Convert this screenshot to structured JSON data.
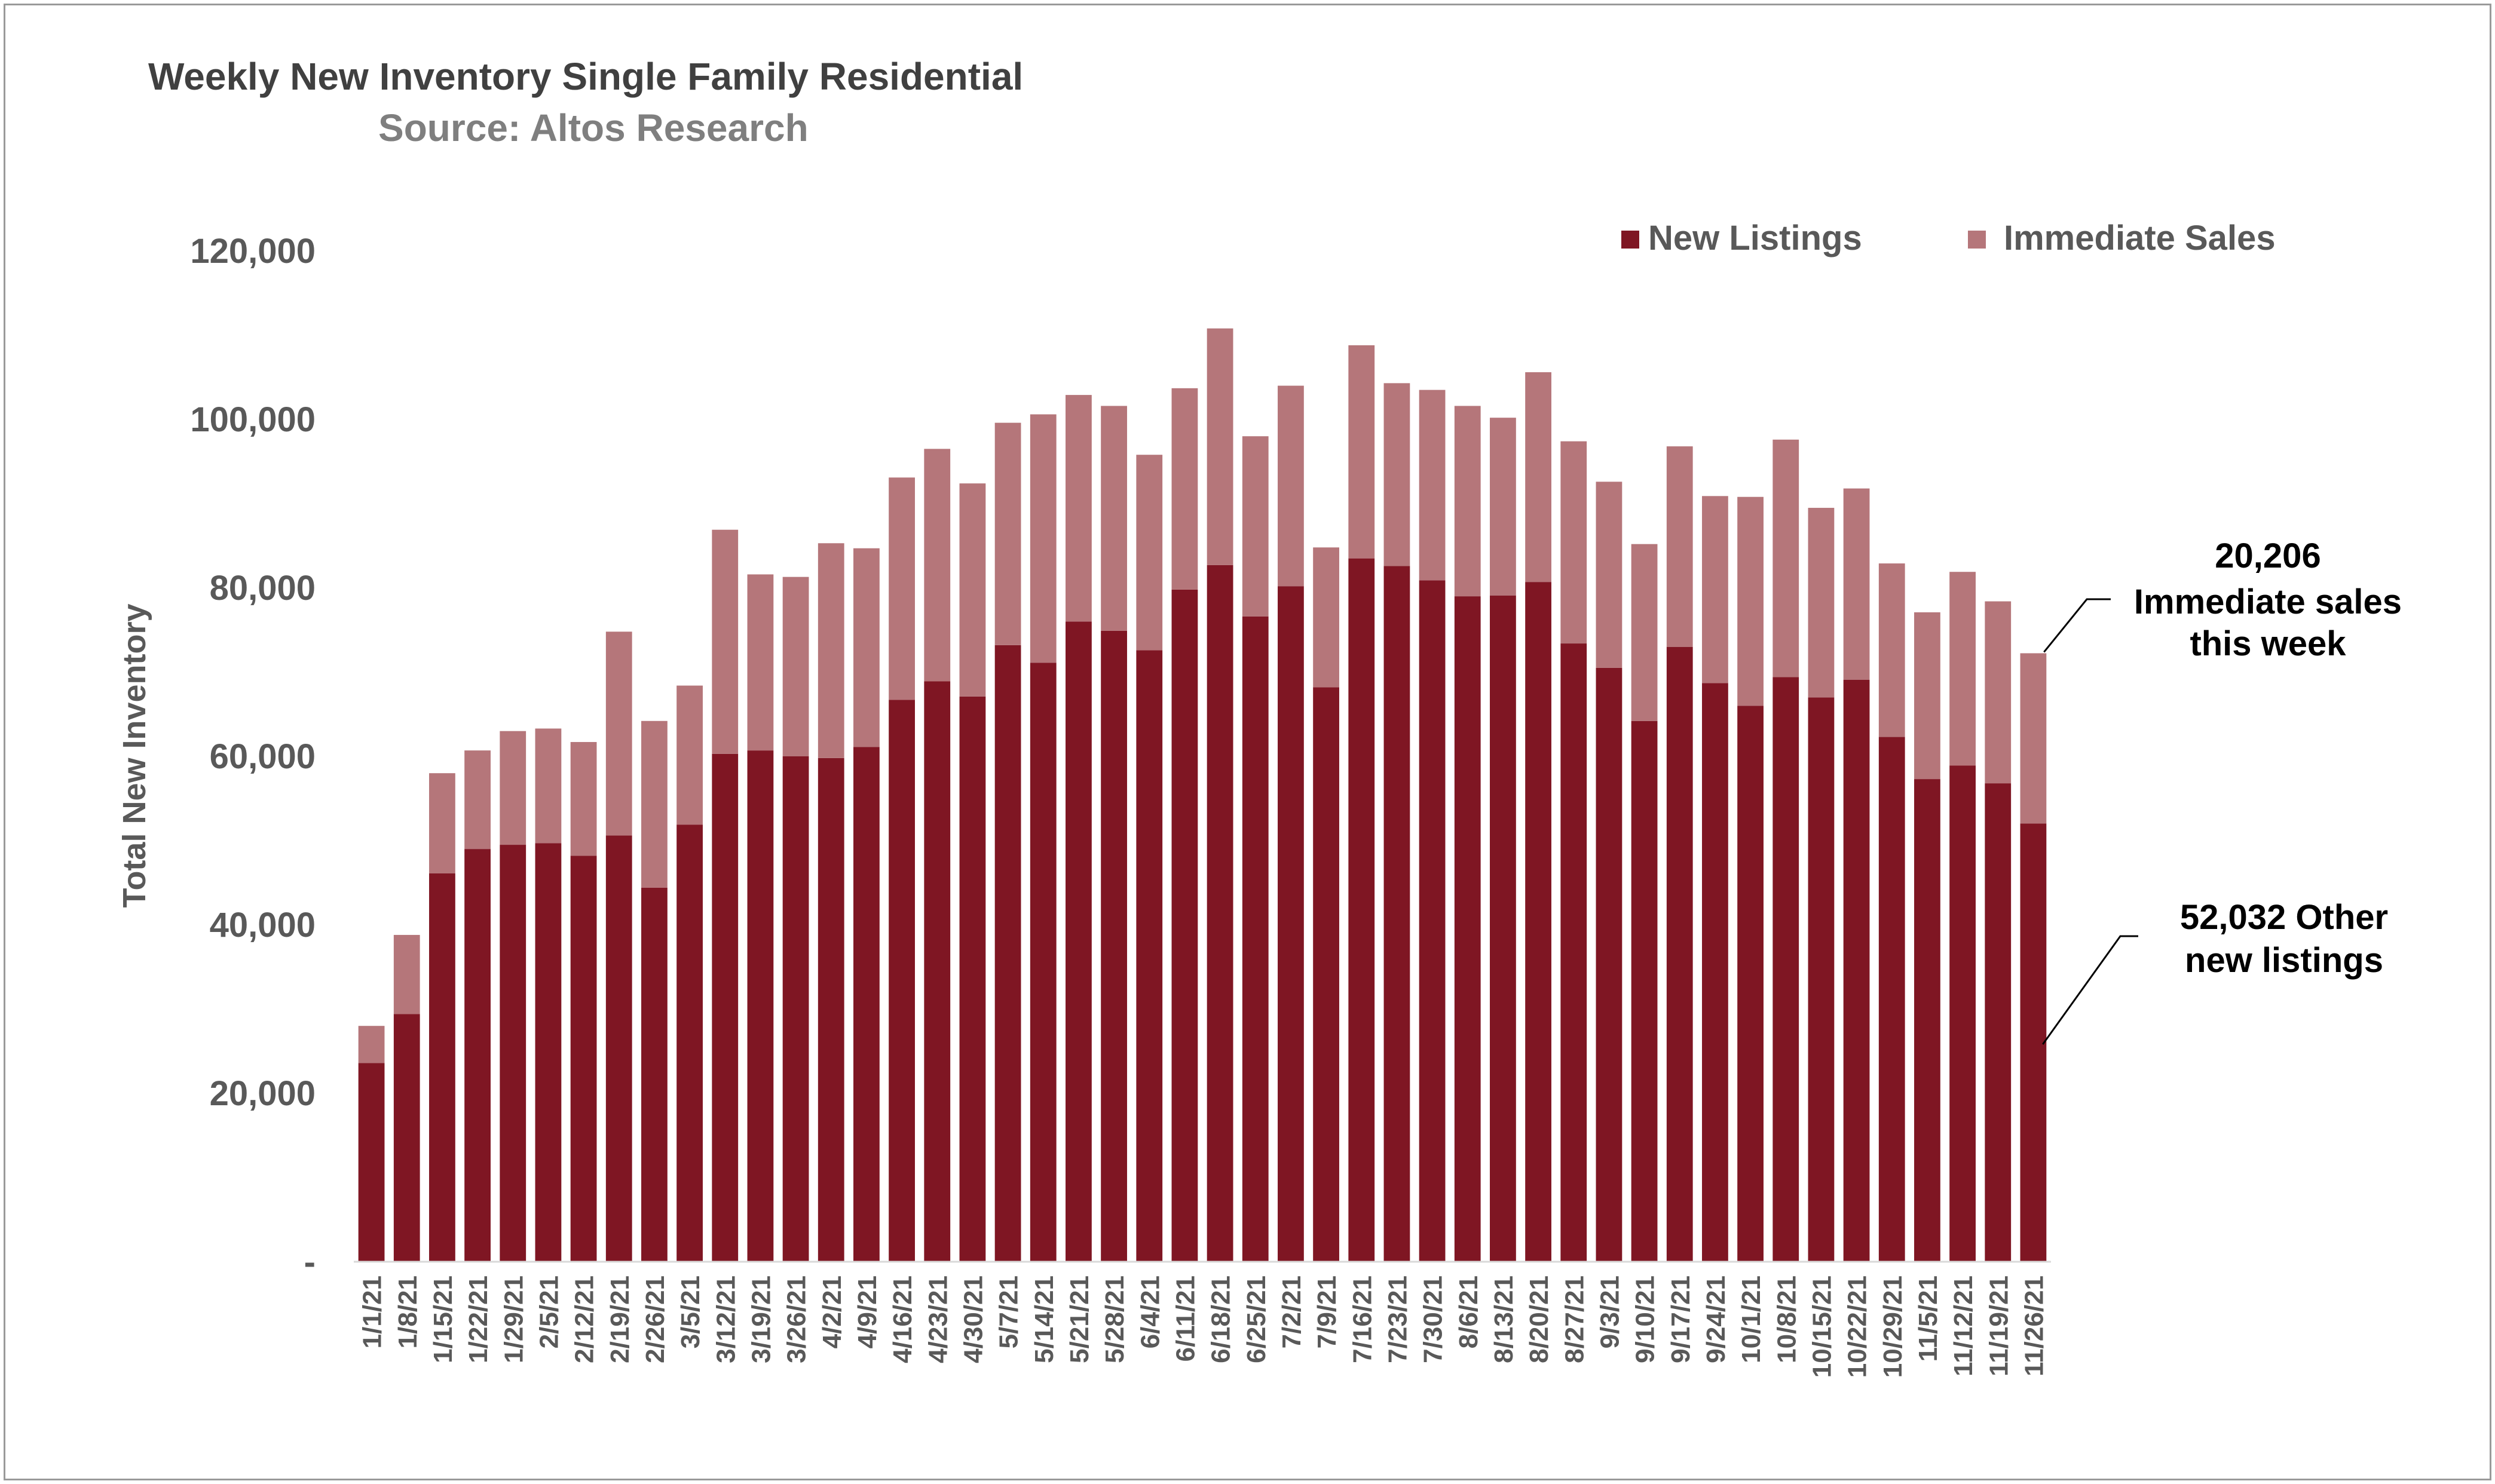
{
  "chart_data": {
    "type": "bar",
    "stacked": true,
    "title": "Weekly New Inventory Single Family Residential",
    "subtitle": "Source: Altos Research",
    "ylabel": "Total New Inventory",
    "xlabel": "",
    "ylim": [
      0,
      120000
    ],
    "yticks": [
      0,
      20000,
      40000,
      60000,
      80000,
      100000,
      120000
    ],
    "ytick_labels": [
      "-",
      "20,000",
      "40,000",
      "60,000",
      "80,000",
      "100,000",
      "120,000"
    ],
    "grid": false,
    "legend": "top-right",
    "categories": [
      "1/1/21",
      "1/8/21",
      "1/15/21",
      "1/22/21",
      "1/29/21",
      "2/5/21",
      "2/12/21",
      "2/19/21",
      "2/26/21",
      "3/5/21",
      "3/12/21",
      "3/19/21",
      "3/26/21",
      "4/2/21",
      "4/9/21",
      "4/16/21",
      "4/23/21",
      "4/30/21",
      "5/7/21",
      "5/14/21",
      "5/21/21",
      "5/28/21",
      "6/4/21",
      "6/11/21",
      "6/18/21",
      "6/25/21",
      "7/2/21",
      "7/9/21",
      "7/16/21",
      "7/23/21",
      "7/30/21",
      "8/6/21",
      "8/13/21",
      "8/20/21",
      "8/27/21",
      "9/3/21",
      "9/10/21",
      "9/17/21",
      "9/24/21",
      "10/1/21",
      "10/8/21",
      "10/15/21",
      "10/22/21",
      "10/29/21",
      "11/5/21",
      "11/12/21",
      "11/19/21",
      "11/26/21"
    ],
    "series": [
      {
        "name": "New Listings",
        "color": "#7f1623",
        "values": [
          23600,
          29400,
          46100,
          49000,
          49500,
          49700,
          48200,
          50600,
          44400,
          51900,
          60300,
          60700,
          60000,
          59800,
          61100,
          66700,
          68900,
          67100,
          73200,
          71100,
          76000,
          74900,
          72600,
          79800,
          82700,
          76600,
          80200,
          68200,
          83500,
          82600,
          80900,
          79000,
          79100,
          80700,
          73400,
          70500,
          64200,
          73000,
          68700,
          66000,
          69400,
          67000,
          69100,
          62300,
          57300,
          58900,
          56800,
          52032
        ]
      },
      {
        "name": "Immediate Sales",
        "color": "#b5767a",
        "values": [
          4400,
          9400,
          11900,
          11700,
          13500,
          13600,
          13500,
          24200,
          19800,
          16500,
          26600,
          20900,
          21300,
          25500,
          23600,
          26400,
          27600,
          25300,
          26400,
          29500,
          26900,
          26700,
          23200,
          23900,
          28100,
          21400,
          23800,
          16600,
          25300,
          21700,
          22600,
          22600,
          21100,
          24900,
          24000,
          22100,
          21000,
          23800,
          22200,
          24800,
          28200,
          22500,
          22700,
          20600,
          19800,
          23000,
          21600,
          20206
        ]
      }
    ],
    "annotations": [
      {
        "text_lines": [
          "20,206",
          "Immediate sales",
          "this week"
        ]
      },
      {
        "text_lines": [
          "52,032 Other",
          "new listings"
        ]
      }
    ]
  }
}
